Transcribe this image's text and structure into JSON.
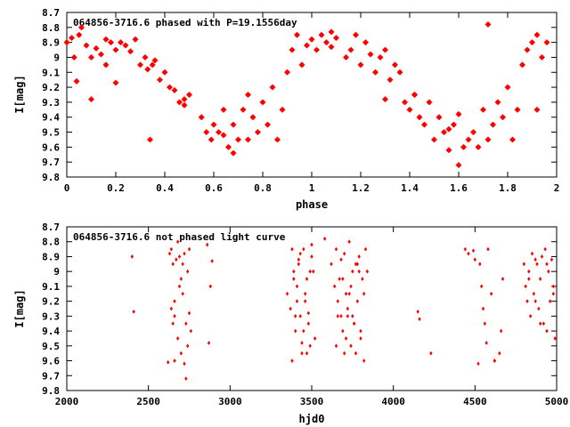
{
  "chart_data": [
    {
      "type": "scatter",
      "title": "064856-3716.6 phased with P=19.1556day",
      "xlabel": "phase",
      "ylabel": "I[mag]",
      "xlim": [
        0,
        2
      ],
      "ylim": [
        8.7,
        9.8
      ],
      "y_inverted": true,
      "xticks": [
        0,
        0.2,
        0.4,
        0.6,
        0.8,
        1,
        1.2,
        1.4,
        1.6,
        1.8,
        2
      ],
      "xtick_labels": [
        "0",
        "0.2",
        "0.4",
        "0.6",
        "0.8",
        "1",
        "1.2",
        "1.4",
        "1.6",
        "1.8",
        "2"
      ],
      "yticks": [
        8.7,
        8.8,
        8.9,
        9,
        9.1,
        9.2,
        9.3,
        9.4,
        9.5,
        9.6,
        9.7,
        9.8
      ],
      "ytick_labels": [
        "8.7",
        "8.8",
        "8.9",
        "9",
        "9.1",
        "9.2",
        "9.3",
        "9.4",
        "9.5",
        "9.6",
        "9.7",
        "9.8"
      ],
      "marker_color": "#ff0000",
      "x": [
        0.0,
        0.02,
        0.03,
        0.05,
        0.06,
        0.08,
        0.1,
        0.12,
        0.14,
        0.16,
        0.18,
        0.2,
        0.22,
        0.24,
        0.26,
        0.28,
        0.3,
        0.32,
        0.33,
        0.35,
        0.36,
        0.38,
        0.4,
        0.42,
        0.44,
        0.46,
        0.48,
        0.5,
        0.55,
        0.57,
        0.59,
        0.6,
        0.62,
        0.64,
        0.66,
        0.68,
        0.7,
        0.72,
        0.74,
        0.76,
        0.78,
        0.8,
        0.82,
        0.84,
        0.86,
        0.88,
        0.9,
        0.92,
        0.94,
        0.96,
        0.98,
        1.0,
        1.02,
        1.04,
        1.06,
        1.08,
        1.1,
        1.14,
        1.16,
        1.18,
        1.2,
        1.22,
        1.24,
        1.26,
        1.28,
        1.3,
        1.32,
        1.34,
        1.36,
        1.38,
        1.4,
        1.42,
        1.44,
        1.46,
        1.48,
        1.5,
        1.52,
        1.54,
        1.56,
        1.58,
        1.6,
        1.62,
        1.64,
        1.66,
        1.68,
        1.7,
        1.72,
        1.74,
        1.76,
        1.78,
        1.8,
        1.82,
        1.84,
        1.86,
        1.88,
        1.9,
        1.92,
        1.94,
        1.96,
        1.08,
        0.34,
        0.1,
        0.04,
        1.3,
        1.42,
        1.56,
        1.6,
        1.72,
        1.92,
        0.74,
        0.68,
        0.64,
        0.48,
        0.2,
        0.16
      ],
      "y": [
        8.9,
        8.87,
        9.0,
        8.85,
        8.8,
        8.92,
        9.0,
        8.94,
        8.98,
        8.88,
        8.9,
        8.95,
        8.9,
        8.92,
        8.96,
        8.88,
        9.05,
        9.0,
        9.08,
        9.05,
        9.02,
        9.15,
        9.1,
        9.2,
        9.22,
        9.3,
        9.28,
        9.25,
        9.4,
        9.5,
        9.55,
        9.45,
        9.5,
        9.35,
        9.6,
        9.45,
        9.55,
        9.35,
        9.25,
        9.4,
        9.5,
        9.3,
        9.45,
        9.2,
        9.55,
        9.35,
        9.1,
        8.95,
        8.85,
        9.05,
        8.92,
        8.88,
        8.95,
        8.85,
        8.9,
        8.93,
        8.87,
        9.0,
        8.95,
        8.85,
        9.05,
        8.9,
        8.98,
        9.1,
        9.0,
        8.95,
        9.15,
        9.05,
        9.1,
        9.3,
        9.35,
        9.25,
        9.4,
        9.45,
        9.3,
        9.55,
        9.4,
        9.5,
        9.48,
        9.45,
        9.38,
        9.6,
        9.55,
        9.5,
        9.6,
        9.35,
        9.55,
        9.45,
        9.3,
        9.4,
        9.2,
        9.55,
        9.35,
        9.05,
        8.95,
        8.9,
        8.85,
        9.0,
        8.9,
        8.83,
        9.55,
        9.28,
        9.16,
        9.28,
        9.25,
        9.62,
        9.72,
        8.78,
        9.35,
        9.55,
        9.64,
        9.52,
        9.32,
        9.17,
        9.05
      ]
    },
    {
      "type": "scatter",
      "title": "064856-3716.6 not phased light curve",
      "xlabel": "hjd0",
      "ylabel": "I[mag]",
      "xlim": [
        2000,
        5000
      ],
      "ylim": [
        8.7,
        9.8
      ],
      "y_inverted": true,
      "xticks": [
        2000,
        2500,
        3000,
        3500,
        4000,
        4500,
        5000
      ],
      "xtick_labels": [
        "2000",
        "2500",
        "3000",
        "3500",
        "4000",
        "4500",
        "5000"
      ],
      "yticks": [
        8.7,
        8.8,
        8.9,
        9,
        9.1,
        9.2,
        9.3,
        9.4,
        9.5,
        9.6,
        9.7,
        9.8
      ],
      "ytick_labels": [
        "8.7",
        "8.8",
        "8.9",
        "9",
        "9.1",
        "9.2",
        "9.3",
        "9.4",
        "9.5",
        "9.6",
        "9.7",
        "9.8"
      ],
      "marker_color": "#ff0000",
      "x": [
        2400,
        2410,
        2620,
        2630,
        2640,
        2650,
        2660,
        2670,
        2680,
        2690,
        2700,
        2710,
        2720,
        2730,
        2740,
        2750,
        2760,
        2640,
        2650,
        2660,
        2680,
        2700,
        2720,
        2740,
        2660,
        2690,
        2710,
        2730,
        2750,
        2870,
        2880,
        2860,
        2890,
        3350,
        3370,
        3380,
        3390,
        3400,
        3410,
        3420,
        3430,
        3440,
        3450,
        3460,
        3470,
        3480,
        3490,
        3500,
        3510,
        3520,
        3380,
        3400,
        3420,
        3440,
        3460,
        3480,
        3500,
        3390,
        3410,
        3430,
        3450,
        3470,
        3490,
        3580,
        3620,
        3640,
        3650,
        3660,
        3670,
        3680,
        3690,
        3700,
        3710,
        3720,
        3730,
        3740,
        3750,
        3760,
        3770,
        3780,
        3790,
        3800,
        3810,
        3820,
        3830,
        3840,
        3650,
        3680,
        3700,
        3720,
        3740,
        3760,
        3780,
        3800,
        3820,
        3660,
        3690,
        3710,
        3730,
        3750,
        3770,
        3790,
        4150,
        4160,
        4230,
        4440,
        4460,
        4490,
        4500,
        4520,
        4530,
        4540,
        4550,
        4560,
        4570,
        4580,
        4600,
        4620,
        4650,
        4660,
        4670,
        4800,
        4810,
        4820,
        4830,
        4840,
        4850,
        4860,
        4870,
        4880,
        4890,
        4900,
        4910,
        4920,
        4930,
        4940,
        4950,
        4960,
        4970,
        4980,
        4990,
        4830,
        4870,
        4900,
        4940,
        4980,
        4620
      ],
      "y": [
        8.9,
        9.27,
        9.61,
        8.88,
        8.85,
        8.95,
        9.6,
        8.92,
        8.8,
        8.9,
        9.05,
        9.15,
        8.88,
        9.72,
        9.0,
        8.85,
        9.4,
        9.25,
        9.35,
        9.3,
        9.45,
        9.55,
        9.62,
        9.5,
        9.2,
        9.1,
        8.95,
        9.35,
        9.28,
        9.48,
        9.1,
        8.82,
        8.93,
        9.15,
        9.25,
        8.85,
        9.0,
        9.4,
        9.1,
        8.95,
        9.3,
        9.55,
        8.85,
        9.2,
        9.05,
        9.35,
        9.5,
        8.9,
        9.0,
        9.45,
        9.6,
        9.3,
        8.92,
        9.48,
        9.15,
        9.28,
        8.82,
        9.05,
        9.2,
        8.88,
        9.4,
        9.55,
        9.0,
        8.78,
        8.95,
        9.1,
        8.85,
        9.3,
        9.05,
        8.92,
        9.4,
        8.88,
        9.15,
        9.3,
        8.8,
        9.5,
        9.0,
        9.35,
        8.95,
        9.2,
        8.9,
        9.45,
        9.05,
        9.15,
        8.85,
        9.0,
        9.5,
        9.3,
        9.55,
        9.25,
        9.1,
        9.35,
        8.95,
        9.4,
        9.6,
        9.2,
        9.05,
        9.45,
        9.15,
        9.3,
        9.55,
        9.0,
        9.27,
        9.32,
        9.55,
        8.85,
        8.88,
        8.86,
        8.92,
        9.62,
        8.95,
        9.1,
        9.25,
        9.35,
        9.48,
        8.85,
        9.15,
        9.6,
        9.55,
        9.4,
        9.05,
        8.95,
        9.1,
        9.2,
        9.0,
        9.3,
        8.88,
        9.15,
        8.92,
        8.95,
        9.25,
        9.05,
        8.9,
        9.35,
        8.85,
        9.4,
        9.0,
        9.2,
        8.92,
        9.15,
        9.45,
        9.05,
        9.2,
        9.35,
        8.95,
        9.1,
        9.6
      ]
    }
  ]
}
